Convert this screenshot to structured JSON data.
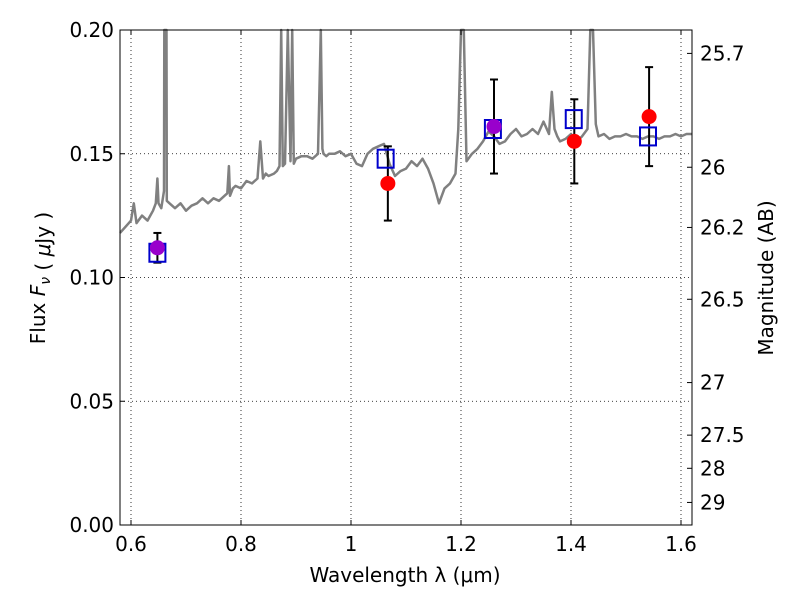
{
  "chart_data": {
    "type": "scatter",
    "xlabel": "Wavelength  λ (μm)",
    "ylabel": "Flux  F_ν  ( μJy )",
    "y2label": "Magnitude (AB)",
    "xlim": [
      0.58,
      1.62
    ],
    "ylim": [
      0.0,
      0.2
    ],
    "grid": true,
    "x_ticks": [
      0.6,
      0.8,
      1.0,
      1.2,
      1.4,
      1.6
    ],
    "x_tick_labels": [
      "0.6",
      "0.8",
      "1",
      "1.2",
      "1.4",
      "1.6"
    ],
    "y_ticks": [
      0.0,
      0.05,
      0.1,
      0.15,
      0.2
    ],
    "y_tick_labels": [
      "0.00",
      "0.05",
      "0.10",
      "0.15",
      "0.20"
    ],
    "magnitude_ticks": [
      "25.7",
      "26",
      "26.2",
      "26.5",
      "27",
      "27.5",
      "28",
      "29"
    ],
    "colors": {
      "spectrum": "#808080",
      "observed": "#ff0000",
      "model": "#0000cc",
      "overlap": "#9900cc",
      "errorbar": "#000000"
    },
    "series": [
      {
        "kind": "spectrum",
        "x": [
          0.58,
          0.6,
          0.605,
          0.61,
          0.62,
          0.63,
          0.64,
          0.645,
          0.648,
          0.65,
          0.655,
          0.66,
          0.6605,
          0.661,
          0.662,
          0.664,
          0.6645,
          0.665,
          0.67,
          0.68,
          0.69,
          0.7,
          0.71,
          0.72,
          0.73,
          0.74,
          0.75,
          0.76,
          0.77,
          0.775,
          0.778,
          0.78,
          0.785,
          0.79,
          0.8,
          0.81,
          0.82,
          0.83,
          0.835,
          0.84,
          0.845,
          0.85,
          0.86,
          0.865,
          0.87,
          0.873,
          0.876,
          0.88,
          0.885,
          0.89,
          0.893,
          0.896,
          0.9,
          0.91,
          0.92,
          0.93,
          0.94,
          0.945,
          0.948,
          0.95,
          0.955,
          0.96,
          0.97,
          0.98,
          0.99,
          1.0,
          1.01,
          1.02,
          1.03,
          1.04,
          1.05,
          1.06,
          1.07,
          1.08,
          1.09,
          1.1,
          1.11,
          1.12,
          1.13,
          1.14,
          1.15,
          1.16,
          1.17,
          1.18,
          1.19,
          1.195,
          1.2,
          1.205,
          1.21,
          1.22,
          1.23,
          1.24,
          1.25,
          1.26,
          1.27,
          1.28,
          1.29,
          1.3,
          1.31,
          1.32,
          1.33,
          1.34,
          1.35,
          1.36,
          1.365,
          1.37,
          1.375,
          1.38,
          1.39,
          1.4,
          1.41,
          1.42,
          1.43,
          1.435,
          1.44,
          1.445,
          1.45,
          1.46,
          1.47,
          1.48,
          1.49,
          1.5,
          1.51,
          1.52,
          1.53,
          1.54,
          1.55,
          1.56,
          1.57,
          1.58,
          1.59,
          1.6,
          1.61,
          1.62
        ],
        "y": [
          0.118,
          0.123,
          0.13,
          0.122,
          0.125,
          0.123,
          0.127,
          0.13,
          0.14,
          0.13,
          0.128,
          0.135,
          0.2,
          0.2,
          0.2,
          0.2,
          0.2,
          0.131,
          0.13,
          0.128,
          0.13,
          0.127,
          0.129,
          0.13,
          0.132,
          0.13,
          0.132,
          0.131,
          0.133,
          0.134,
          0.145,
          0.133,
          0.136,
          0.137,
          0.136,
          0.139,
          0.138,
          0.14,
          0.155,
          0.14,
          0.142,
          0.141,
          0.142,
          0.143,
          0.145,
          0.2,
          0.145,
          0.146,
          0.2,
          0.147,
          0.2,
          0.146,
          0.148,
          0.149,
          0.149,
          0.148,
          0.15,
          0.2,
          0.152,
          0.15,
          0.149,
          0.15,
          0.15,
          0.151,
          0.149,
          0.15,
          0.146,
          0.145,
          0.15,
          0.152,
          0.153,
          0.154,
          0.146,
          0.141,
          0.143,
          0.144,
          0.147,
          0.145,
          0.148,
          0.144,
          0.138,
          0.13,
          0.136,
          0.138,
          0.142,
          0.16,
          0.2,
          0.2,
          0.147,
          0.15,
          0.152,
          0.155,
          0.159,
          0.157,
          0.154,
          0.155,
          0.158,
          0.16,
          0.157,
          0.158,
          0.16,
          0.158,
          0.163,
          0.158,
          0.175,
          0.16,
          0.157,
          0.155,
          0.156,
          0.158,
          0.155,
          0.157,
          0.16,
          0.2,
          0.2,
          0.162,
          0.157,
          0.158,
          0.156,
          0.157,
          0.157,
          0.158,
          0.157,
          0.157,
          0.156,
          0.157,
          0.157,
          0.156,
          0.157,
          0.157,
          0.158,
          0.157,
          0.158,
          0.158
        ]
      },
      {
        "kind": "observed",
        "x": [
          0.648,
          1.067,
          1.26,
          1.406,
          1.542
        ],
        "y": [
          0.112,
          0.138,
          0.161,
          0.155,
          0.165
        ],
        "yerr": [
          0.006,
          0.015,
          0.019,
          0.017,
          0.02
        ]
      },
      {
        "kind": "model",
        "x": [
          0.648,
          1.063,
          1.258,
          1.405,
          1.54
        ],
        "y": [
          0.11,
          0.148,
          0.16,
          0.164,
          0.157
        ]
      }
    ]
  }
}
